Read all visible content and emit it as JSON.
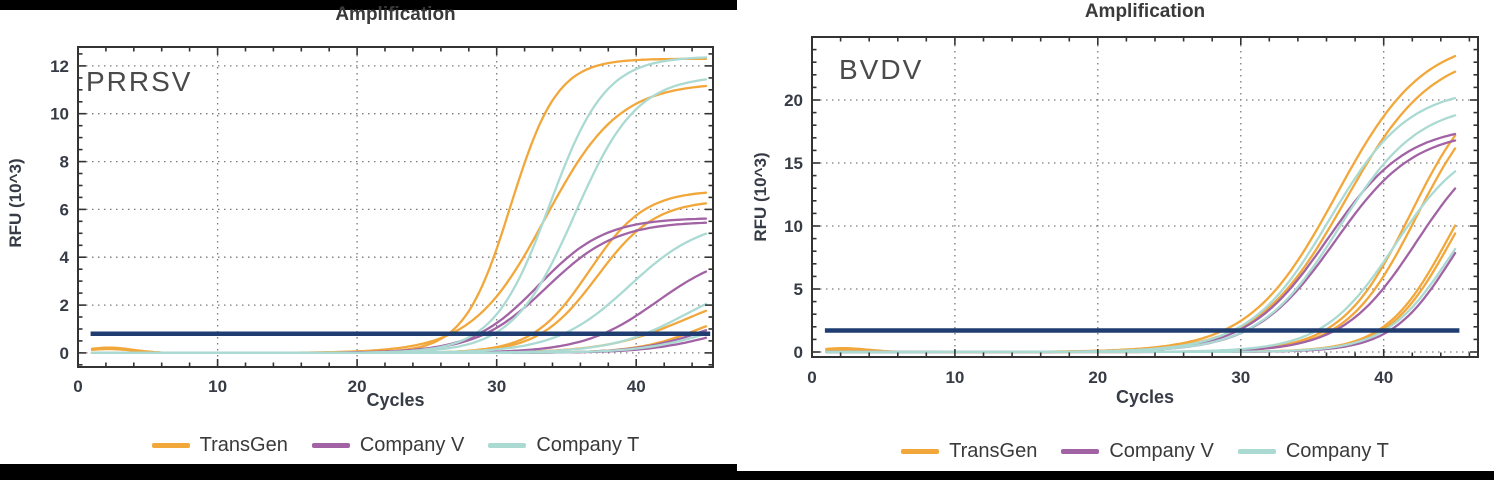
{
  "chart_data": [
    {
      "type": "line",
      "title": "Amplification",
      "panel_label": "PRRSV",
      "xlabel": "Cycles",
      "ylabel": "RFU (10^3)",
      "xlim": [
        0,
        45.5
      ],
      "ylim": [
        -0.59,
        12.79
      ],
      "xticks": [
        0,
        10,
        20,
        30,
        40
      ],
      "yticks": [
        0,
        2,
        4,
        6,
        8,
        10,
        12
      ],
      "x_minor_step": 2,
      "y_minor_step": 0.5,
      "grid": true,
      "legend_position": "bottom-center",
      "threshold_rfu": 0.8,
      "colors": {
        "axis": "#333333",
        "grid": "#7a7a7a",
        "threshold": "#1F3D70"
      },
      "series": [
        {
          "name": "TransGen",
          "color": "#F2A73B"
        },
        {
          "name": "Company V",
          "color": "#A263A5"
        },
        {
          "name": "Company T",
          "color": "#ABDAD3"
        }
      ],
      "curves": [
        {
          "series": "TransGen",
          "ct": 26.8,
          "plateau_rfu": 12.3,
          "midpoint_cycle": 31.0,
          "steepness": 0.6,
          "baseline_bump": 0.22
        },
        {
          "series": "TransGen",
          "ct": 27.4,
          "plateau_rfu": 11.3,
          "midpoint_cycle": 33.5,
          "steepness": 0.38,
          "baseline_bump": 0.16
        },
        {
          "series": "TransGen",
          "ct": 32.8,
          "plateau_rfu": 6.8,
          "midpoint_cycle": 36.6,
          "steepness": 0.5,
          "baseline_bump": 0
        },
        {
          "series": "TransGen",
          "ct": 33.4,
          "plateau_rfu": 6.4,
          "midpoint_cycle": 37.2,
          "steepness": 0.48,
          "baseline_bump": 0
        },
        {
          "series": "TransGen",
          "ct": 41.4,
          "plateau_rfu": 2.8,
          "midpoint_cycle": 43.5,
          "steepness": 0.35,
          "baseline_bump": 0
        },
        {
          "series": "TransGen",
          "ct": 44.9,
          "plateau_rfu": 2.0,
          "midpoint_cycle": 44.5,
          "steepness": 0.45,
          "baseline_bump": 0
        },
        {
          "series": "Company V",
          "ct": 29.0,
          "plateau_rfu": 5.65,
          "midpoint_cycle": 33.0,
          "steepness": 0.42,
          "baseline_bump": 0
        },
        {
          "series": "Company V",
          "ct": 29.5,
          "plateau_rfu": 5.5,
          "midpoint_cycle": 33.6,
          "steepness": 0.4,
          "baseline_bump": 0
        },
        {
          "series": "Company V",
          "ct": 38.0,
          "plateau_rfu": 4.3,
          "midpoint_cycle": 41.5,
          "steepness": 0.38,
          "baseline_bump": 0
        },
        {
          "series": "Company V",
          "ct": 45.0,
          "plateau_rfu": 1.9,
          "midpoint_cycle": 45.0,
          "steepness": 0.42,
          "baseline_bump": 0
        },
        {
          "series": "Company V",
          "ct": 45.5,
          "plateau_rfu": 1.5,
          "midpoint_cycle": 45.8,
          "steepness": 0.4,
          "baseline_bump": 0
        },
        {
          "series": "Company T",
          "ct": 28.7,
          "plateau_rfu": 12.4,
          "midpoint_cycle": 33.8,
          "steepness": 0.5,
          "baseline_bump": 0
        },
        {
          "series": "Company T",
          "ct": 30.1,
          "plateau_rfu": 11.6,
          "midpoint_cycle": 35.6,
          "steepness": 0.45,
          "baseline_bump": 0
        },
        {
          "series": "Company T",
          "ct": 35.2,
          "plateau_rfu": 5.6,
          "midpoint_cycle": 39.5,
          "steepness": 0.38,
          "baseline_bump": 0
        },
        {
          "series": "Company T",
          "ct": 41.0,
          "plateau_rfu": 3.2,
          "midpoint_cycle": 43.5,
          "steepness": 0.38,
          "baseline_bump": 0
        },
        {
          "series": "Company T",
          "ct": 45.2,
          "plateau_rfu": 1.7,
          "midpoint_cycle": 45.3,
          "steepness": 0.4,
          "baseline_bump": 0
        }
      ]
    },
    {
      "type": "line",
      "title": "Amplification",
      "panel_label": "BVDV",
      "xlabel": "Cycles",
      "ylabel": "RFU (10^3)",
      "xlim": [
        0,
        46.6
      ],
      "ylim": [
        -0.4,
        25.0
      ],
      "xticks": [
        0,
        10,
        20,
        30,
        40
      ],
      "yticks": [
        0,
        5,
        10,
        15,
        20
      ],
      "x_minor_step": 2,
      "y_minor_step": 1,
      "grid": true,
      "legend_position": "bottom-center",
      "threshold_rfu": 1.7,
      "colors": {
        "axis": "#333333",
        "grid": "#7a7a7a",
        "threshold": "#1F3D70"
      },
      "series": [
        {
          "name": "TransGen",
          "color": "#F2A73B"
        },
        {
          "name": "Company V",
          "color": "#A263A5"
        },
        {
          "name": "Company T",
          "color": "#ABDAD3"
        }
      ],
      "curves": [
        {
          "series": "TransGen",
          "ct": 29.0,
          "plateau_rfu": 25.0,
          "midpoint_cycle": 36.7,
          "steepness": 0.33,
          "baseline_bump": 0.3
        },
        {
          "series": "TransGen",
          "ct": 29.7,
          "plateau_rfu": 24.0,
          "midpoint_cycle": 37.3,
          "steepness": 0.33,
          "baseline_bump": 0.2
        },
        {
          "series": "TransGen",
          "ct": 36.0,
          "plateau_rfu": 22.0,
          "midpoint_cycle": 41.9,
          "steepness": 0.41,
          "baseline_bump": 0
        },
        {
          "series": "TransGen",
          "ct": 36.5,
          "plateau_rfu": 21.5,
          "midpoint_cycle": 42.3,
          "steepness": 0.41,
          "baseline_bump": 0
        },
        {
          "series": "TransGen",
          "ct": 39.7,
          "plateau_rfu": 18.0,
          "midpoint_cycle": 44.5,
          "steepness": 0.46,
          "baseline_bump": 0
        },
        {
          "series": "TransGen",
          "ct": 39.9,
          "plateau_rfu": 17.6,
          "midpoint_cycle": 44.7,
          "steepness": 0.46,
          "baseline_bump": 0
        },
        {
          "series": "Company V",
          "ct": 30.0,
          "plateau_rfu": 18.0,
          "midpoint_cycle": 36.1,
          "steepness": 0.36,
          "baseline_bump": 0
        },
        {
          "series": "Company V",
          "ct": 30.5,
          "plateau_rfu": 17.6,
          "midpoint_cycle": 36.6,
          "steepness": 0.36,
          "baseline_bump": 0
        },
        {
          "series": "Company V",
          "ct": 36.8,
          "plateau_rfu": 17.5,
          "midpoint_cycle": 42.3,
          "steepness": 0.39,
          "baseline_bump": 0
        },
        {
          "series": "Company V",
          "ct": 40.5,
          "plateau_rfu": 15.0,
          "midpoint_cycle": 44.8,
          "steepness": 0.47,
          "baseline_bump": 0
        },
        {
          "series": "Company T",
          "ct": 29.5,
          "plateau_rfu": 21.0,
          "midpoint_cycle": 36.2,
          "steepness": 0.36,
          "baseline_bump": 0
        },
        {
          "series": "Company T",
          "ct": 30.3,
          "plateau_rfu": 19.8,
          "midpoint_cycle": 36.9,
          "steepness": 0.36,
          "baseline_bump": 0
        },
        {
          "series": "Company T",
          "ct": 35.5,
          "plateau_rfu": 17.0,
          "midpoint_cycle": 40.8,
          "steepness": 0.4,
          "baseline_bump": 0
        },
        {
          "series": "Company T",
          "ct": 40.2,
          "plateau_rfu": 15.0,
          "midpoint_cycle": 44.6,
          "steepness": 0.45,
          "baseline_bump": 0
        }
      ]
    }
  ]
}
